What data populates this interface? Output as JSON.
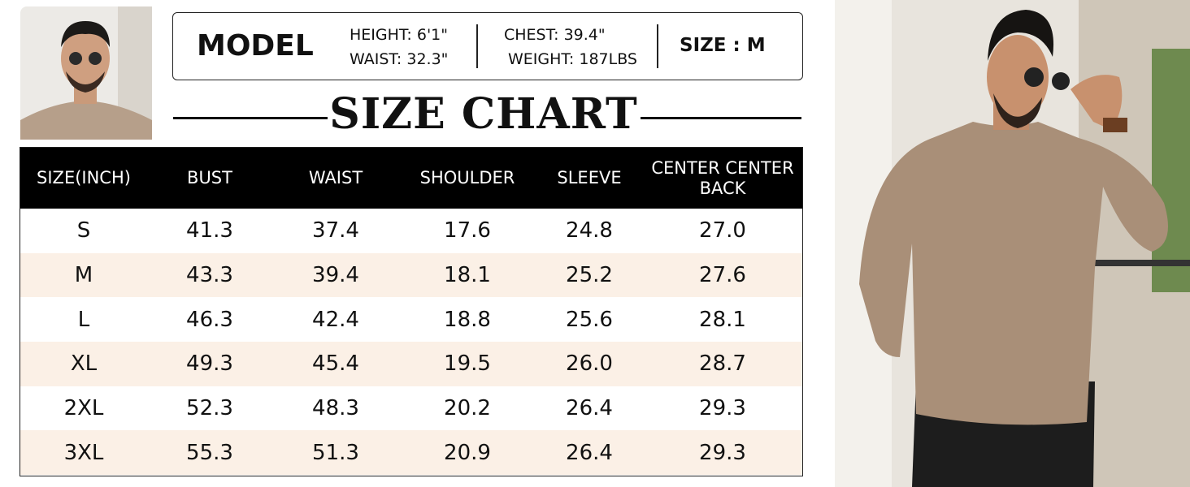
{
  "model": {
    "label": "MODEL",
    "height": "HEIGHT: 6'1\"",
    "waist": "WAIST: 32.3\"",
    "chest": "CHEST: 39.4\"",
    "weight": "WEIGHT: 187LBS",
    "size": "SIZE : M"
  },
  "title": "SIZE CHART",
  "table": {
    "header": [
      "SIZE(INCH)",
      "BUST",
      "WAIST",
      "SHOULDER",
      "SLEEVE",
      "CENTER CENTER BACK"
    ],
    "rows": [
      [
        "S",
        "41.3",
        "37.4",
        "17.6",
        "24.8",
        "27.0"
      ],
      [
        "M",
        "43.3",
        "39.4",
        "18.1",
        "25.2",
        "27.6"
      ],
      [
        "L",
        "46.3",
        "42.4",
        "18.8",
        "25.6",
        "28.1"
      ],
      [
        "XL",
        "49.3",
        "45.4",
        "19.5",
        "26.0",
        "28.7"
      ],
      [
        "2XL",
        "52.3",
        "48.3",
        "20.2",
        "26.4",
        "29.3"
      ],
      [
        "3XL",
        "55.3",
        "51.3",
        "20.9",
        "26.4",
        "29.3"
      ]
    ]
  }
}
